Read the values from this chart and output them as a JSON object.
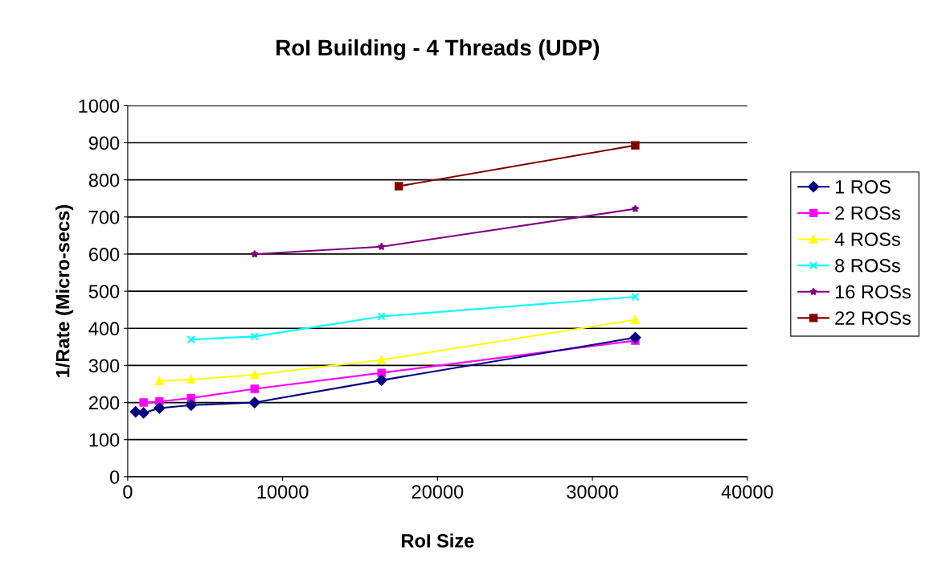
{
  "chart_data": {
    "type": "line",
    "title": "RoI Building - 4 Threads (UDP)",
    "xlabel": "RoI Size",
    "ylabel": "1/Rate (Micro-secs)",
    "xlim": [
      0,
      40000
    ],
    "xticks": [
      0,
      10000,
      20000,
      30000,
      40000
    ],
    "ylim": [
      0,
      1000
    ],
    "yticks": [
      0,
      100,
      200,
      300,
      400,
      500,
      600,
      700,
      800,
      900,
      1000
    ],
    "grid": "y",
    "legend": "right",
    "series": [
      {
        "name": "1 ROS",
        "color": "#000080",
        "marker": "diamond",
        "x": [
          512,
          1024,
          2048,
          4096,
          8192,
          16384,
          32768
        ],
        "values": [
          175,
          172,
          185,
          193,
          200,
          260,
          375
        ]
      },
      {
        "name": "2 ROSs",
        "color": "#ff00ff",
        "marker": "square",
        "x": [
          1024,
          2048,
          4096,
          8192,
          16384,
          32768
        ],
        "values": [
          200,
          203,
          212,
          237,
          280,
          367
        ]
      },
      {
        "name": "4 ROSs",
        "color": "#ffff00",
        "marker": "triangle",
        "x": [
          2048,
          4096,
          8192,
          16384,
          32768
        ],
        "values": [
          258,
          262,
          275,
          315,
          423
        ]
      },
      {
        "name": "8 ROSs",
        "color": "#00ffff",
        "marker": "cross",
        "x": [
          4096,
          8192,
          16384,
          32768
        ],
        "values": [
          370,
          378,
          432,
          485
        ]
      },
      {
        "name": "16 ROSs",
        "color": "#800080",
        "marker": "star",
        "x": [
          8192,
          16384,
          32768
        ],
        "values": [
          600,
          620,
          722
        ]
      },
      {
        "name": "22 ROSs",
        "color": "#800000",
        "marker": "square",
        "x": [
          17500,
          32768
        ],
        "values": [
          783,
          893
        ]
      }
    ]
  }
}
